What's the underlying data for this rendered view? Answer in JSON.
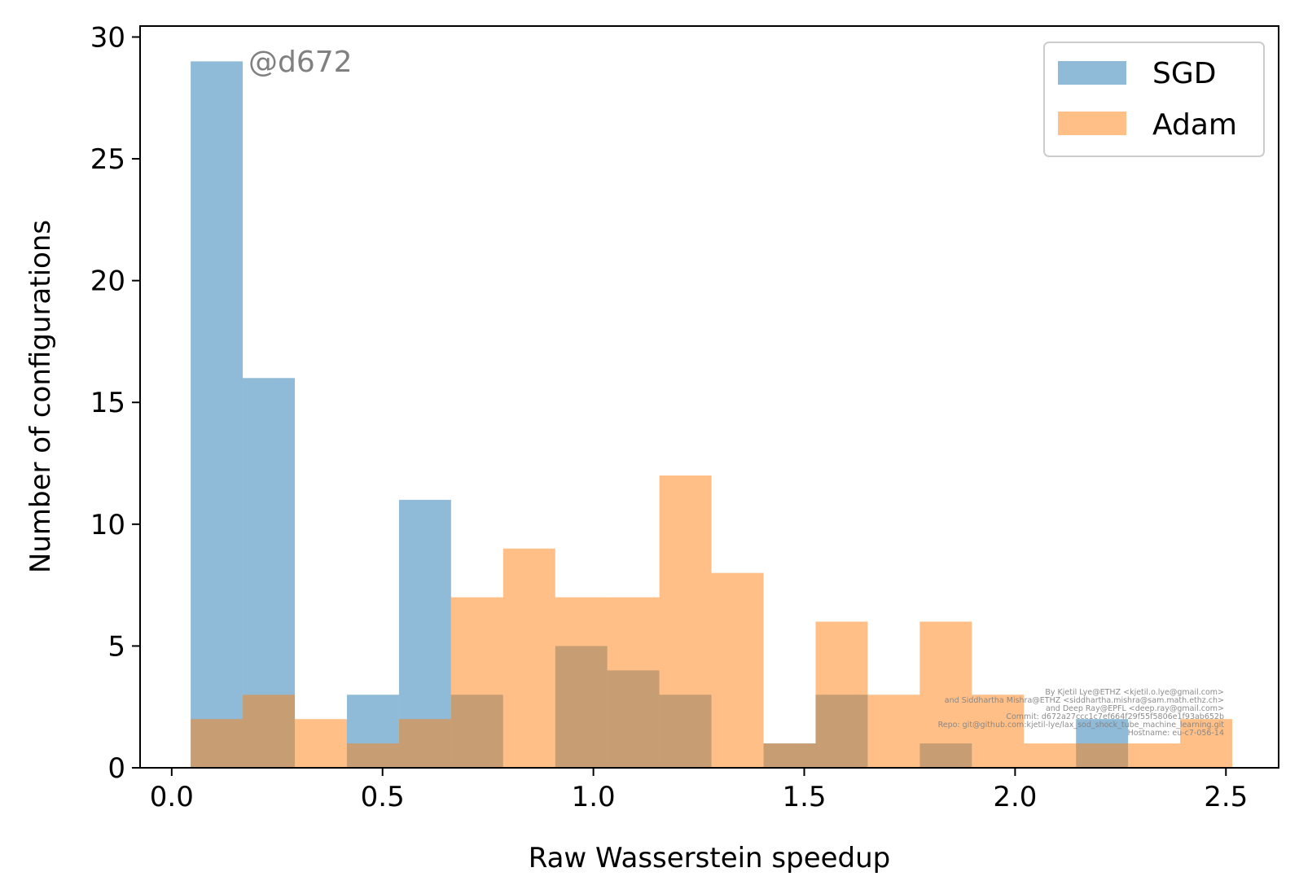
{
  "chart_data": {
    "type": "bar",
    "title": "",
    "xlabel": "Raw Wasserstein speedup",
    "ylabel": "Number of configurations",
    "xlim": [
      -0.075,
      2.625
    ],
    "ylim": [
      0,
      30.45
    ],
    "xticks": [
      "0.0",
      "0.5",
      "1.0",
      "1.5",
      "2.0",
      "2.5"
    ],
    "yticks": [
      "0",
      "5",
      "10",
      "15",
      "20",
      "25",
      "30"
    ],
    "grid": false,
    "legend_position": "top-right",
    "bin_edges": [
      0.045,
      0.1685,
      0.292,
      0.4155,
      0.539,
      0.6625,
      0.786,
      0.9095,
      1.033,
      1.1565,
      1.28,
      1.4035,
      1.527,
      1.6505,
      1.774,
      1.8975,
      2.021,
      2.1445,
      2.268,
      2.3915,
      2.515
    ],
    "series": [
      {
        "name": "SGD",
        "color": "#1f77b4",
        "counts": [
          29,
          16,
          0,
          3,
          11,
          3,
          0,
          5,
          4,
          3,
          0,
          1,
          3,
          0,
          1,
          0,
          0,
          2,
          0,
          0
        ]
      },
      {
        "name": "Adam",
        "color": "#ff7f0e",
        "counts": [
          2,
          3,
          2,
          1,
          2,
          7,
          9,
          7,
          7,
          12,
          8,
          1,
          6,
          3,
          6,
          3,
          1,
          1,
          1,
          2
        ]
      }
    ],
    "annotations": {
      "tag": "@d672",
      "credits": [
        "By Kjetil Lye@ETHZ <kjetil.o.lye@gmail.com>",
        "and Siddhartha Mishra@ETHZ <siddhartha.mishra@sam.math.ethz.ch>",
        "and Deep Ray@EPFL <deep.ray@gmail.com>",
        "Commit: d672a27ccc1c7ef664f29f55f5806e1f93ab652b",
        "Repo: git@github.com:kjetil-lye/lax_sod_shock_tube_machine_learning.git",
        "Hostname: eu-c7-056-14"
      ]
    }
  }
}
